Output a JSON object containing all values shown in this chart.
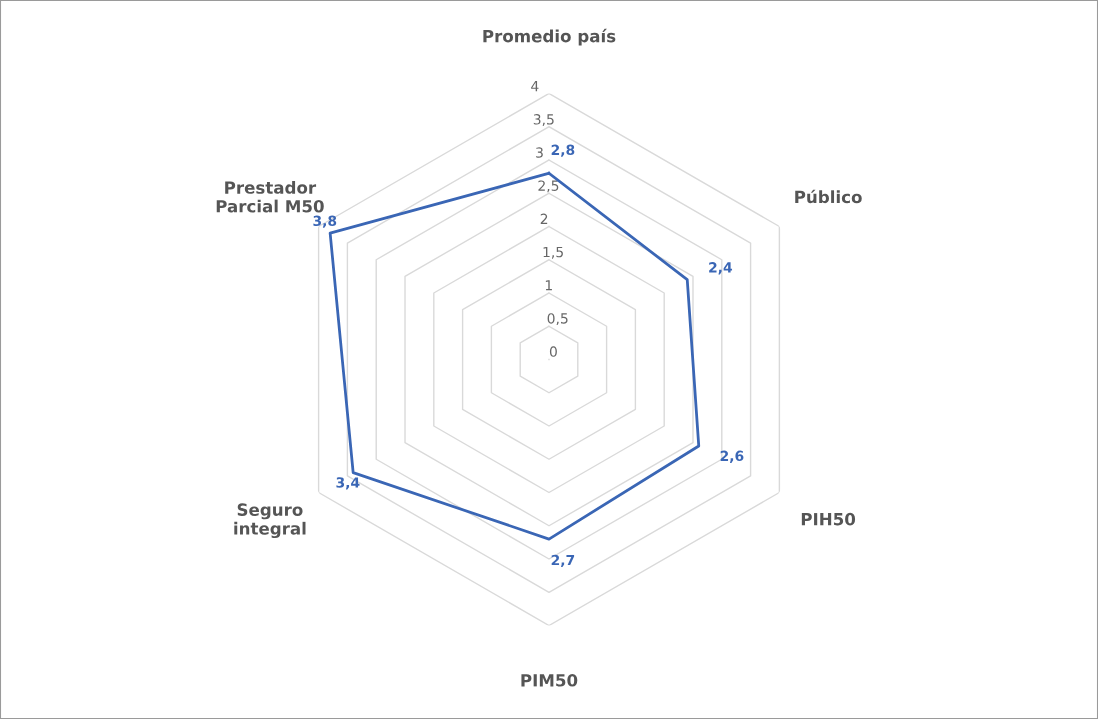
{
  "chart_data": {
    "type": "radar",
    "categories": [
      "Promedio país",
      "Público",
      "PIH50",
      "PIM50",
      "Seguro\nintegral",
      "Prestador\nParcial M50"
    ],
    "series": [
      {
        "color": "#3a66b5",
        "values": [
          2.8,
          2.4,
          2.6,
          2.7,
          3.4,
          3.8
        ],
        "value_labels": [
          "2,8",
          "2,4",
          "2,6",
          "2,7",
          "3,4",
          "3,8"
        ]
      }
    ],
    "ylim": [
      0,
      4
    ],
    "yticks": [
      0,
      {
        "value": 0.5,
        "label": "0,5"
      },
      1,
      {
        "value": 1.5,
        "label": "1,5"
      },
      2,
      {
        "value": 2.5,
        "label": "2,5"
      },
      3,
      {
        "value": 3.5,
        "label": "3,5"
      },
      4
    ],
    "grid": true,
    "marker": "none",
    "line_style": "solid"
  }
}
